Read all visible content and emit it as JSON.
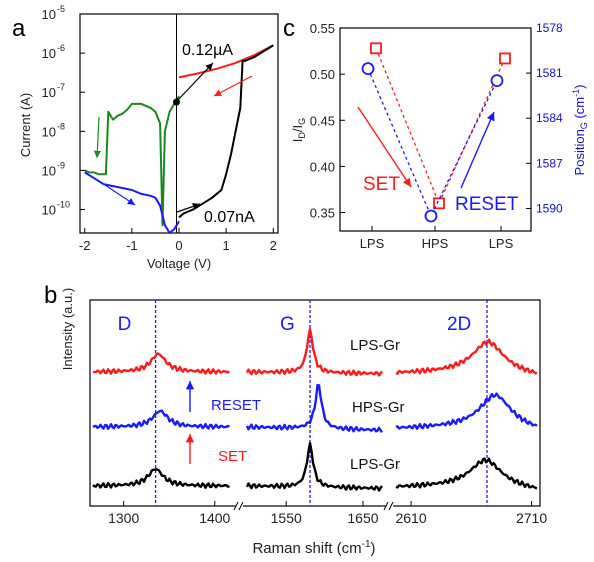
{
  "panels": {
    "a": {
      "label": "a",
      "type": "line",
      "xlabel": "Voltage (V)",
      "ylabel": "Current (A)",
      "xlim": [
        -2.1,
        2.1
      ],
      "ylim_log10": [
        -10.6,
        -5
      ],
      "yscale": "log",
      "x_ticks": [
        "-2",
        "-1",
        "0",
        "1",
        "2"
      ],
      "y_ticks": [
        {
          "base": "10",
          "exp": "-5",
          "v": -5
        },
        {
          "base": "10",
          "exp": "-6",
          "v": -6
        },
        {
          "base": "10",
          "exp": "-7",
          "v": -7
        },
        {
          "base": "10",
          "exp": "-8",
          "v": -8
        },
        {
          "base": "10",
          "exp": "-9",
          "v": -9
        },
        {
          "base": "10",
          "exp": "-10",
          "v": -10
        }
      ],
      "annotations": [
        "0.12µA",
        "0.07nA"
      ],
      "series": [
        {
          "color": "#ff1a1a",
          "x": [
            0.0,
            0.4,
            0.8,
            1.2,
            1.6,
            2.0
          ],
          "log10y": [
            -6.62,
            -6.52,
            -6.4,
            -6.25,
            -6.05,
            -5.8
          ]
        },
        {
          "color": "#000000",
          "x": [
            0.0,
            0.1,
            0.3,
            0.5,
            0.7,
            0.9,
            1.0,
            1.1,
            1.2,
            1.3,
            1.35,
            1.4,
            1.6,
            1.8,
            2.0
          ],
          "log10y": [
            -10.2,
            -10.1,
            -10.0,
            -9.85,
            -9.7,
            -9.5,
            -9.1,
            -8.6,
            -8.0,
            -7.4,
            -6.2,
            -6.2,
            -6.1,
            -5.95,
            -5.8
          ]
        },
        {
          "color": "#1a8a1a",
          "x": [
            0.0,
            -0.1,
            -0.2,
            -0.3,
            -0.35,
            -0.4,
            -0.5,
            -0.6,
            -0.7,
            -0.8,
            -0.9,
            -1.0,
            -1.1,
            -1.2,
            -1.3,
            -1.4,
            -1.5,
            -1.55,
            -1.6,
            -1.7,
            -1.8,
            -1.9,
            -2.0
          ],
          "log10y": [
            -7.1,
            -7.3,
            -7.5,
            -8.0,
            -10.4,
            -7.8,
            -7.5,
            -7.4,
            -7.35,
            -7.3,
            -7.3,
            -7.3,
            -7.45,
            -7.55,
            -7.6,
            -7.7,
            -7.5,
            -9.1,
            -9.1,
            -9.1,
            -9.05,
            -9.05,
            -9.0
          ]
        },
        {
          "color": "#1a1aff",
          "x": [
            -2.0,
            -1.8,
            -1.6,
            -1.4,
            -1.2,
            -1.0,
            -0.8,
            -0.6,
            -0.5,
            -0.4,
            -0.3,
            -0.2,
            -0.1,
            0.0
          ],
          "log10y": [
            -9.05,
            -9.2,
            -9.35,
            -9.4,
            -9.45,
            -9.5,
            -9.6,
            -9.65,
            -9.7,
            -9.9,
            -10.4,
            -10.6,
            -10.5,
            -10.3
          ]
        }
      ]
    },
    "c": {
      "label": "c",
      "type": "scatter",
      "ylabel_left_main": "I",
      "ylabel_left_sub1": "D",
      "ylabel_left_mid": "/I",
      "ylabel_left_sub2": "G",
      "ylabel_right_main": "Position",
      "ylabel_right_sub": "G",
      "ylabel_right_unit": " (cm",
      "ylabel_right_exp": "-1",
      "ylabel_right_close": ")",
      "categories": [
        "LPS",
        "HPS",
        "LPS"
      ],
      "ylim_left": [
        0.33,
        0.55
      ],
      "ylim_right": [
        1578,
        1591.5
      ],
      "left_ticks": [
        "0.35",
        "0.40",
        "0.45",
        "0.50",
        "0.55"
      ],
      "right_ticks": [
        "1578",
        "1581",
        "1584",
        "1587",
        "1590"
      ],
      "series": [
        {
          "name": "ID/IG",
          "color": "#ff1a1a",
          "marker": "square",
          "values": [
            0.528,
            0.36,
            0.517
          ]
        },
        {
          "name": "PositionG",
          "color": "#1a1aff",
          "marker": "circle",
          "values": [
            1580.7,
            1590.5,
            1581.5
          ]
        }
      ],
      "annotations": {
        "set": "SET",
        "reset": "RESET"
      }
    },
    "b": {
      "label": "b",
      "type": "line",
      "xlabel_main": "Raman shift (cm",
      "xlabel_exp": "-1",
      "xlabel_close": ")",
      "ylabel": "Intensity (a.u.)",
      "segments": [
        {
          "xlim": [
            1263,
            1420
          ],
          "ticks": [
            1300,
            1400
          ],
          "tick_labels": [
            "1300",
            "1400"
          ]
        },
        {
          "xlim": [
            1495,
            1680
          ],
          "ticks": [
            1550,
            1650
          ],
          "tick_labels": [
            "1550",
            "1650"
          ]
        },
        {
          "xlim": [
            2595,
            2717
          ],
          "ticks": [
            2610,
            2710
          ],
          "tick_labels": [
            "2610",
            "2710"
          ]
        }
      ],
      "peak_labels": [
        {
          "text": "D",
          "x": 1335,
          "seg": 0
        },
        {
          "text": "G",
          "x": 1581,
          "seg": 1
        },
        {
          "text": "2D",
          "x": 2673,
          "seg": 2
        }
      ],
      "traces": [
        {
          "name": "LPS-Gr",
          "color": "#ff1a1a",
          "peaks": [
            1338,
            1581,
            2674
          ]
        },
        {
          "name": "HPS-Gr",
          "color": "#1a1aff",
          "peaks": [
            1340,
            1592,
            2680
          ]
        },
        {
          "name": "LPS-Gr",
          "color": "#000000",
          "peaks": [
            1335,
            1581,
            2672
          ]
        }
      ],
      "annotations": {
        "reset": "RESET",
        "set": "SET"
      }
    }
  }
}
